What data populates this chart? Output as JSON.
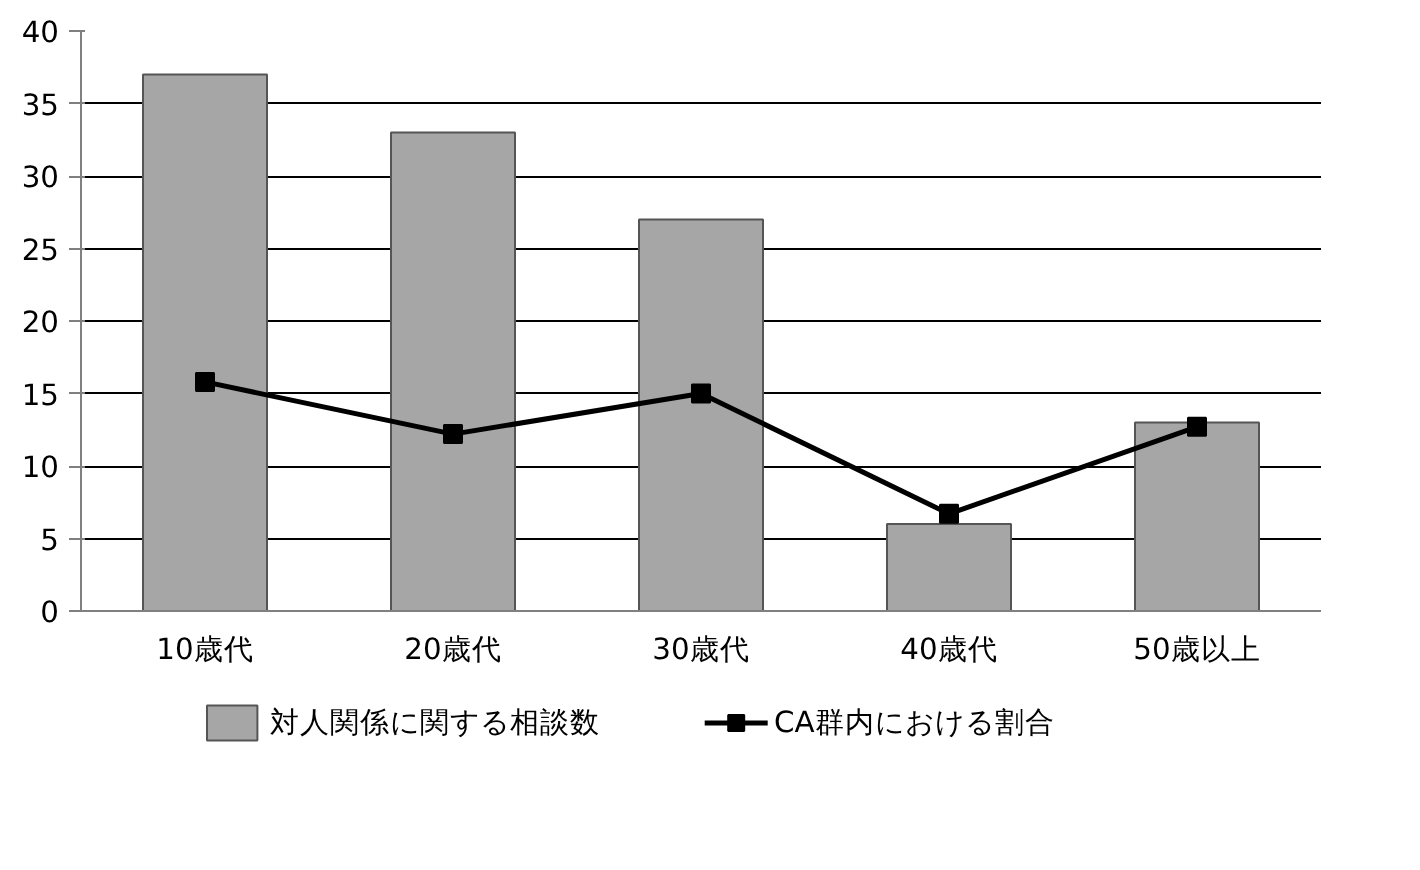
{
  "chart_data": {
    "type": "bar",
    "categories": [
      "10歳代",
      "20歳代",
      "30歳代",
      "40歳代",
      "50歳以上"
    ],
    "series": [
      {
        "name": "対人関係に関する相談数",
        "type": "bar",
        "color": "#a6a6a6",
        "values": [
          37,
          33,
          27,
          6,
          13
        ]
      },
      {
        "name": "CA群内における割合",
        "type": "line",
        "color": "#000000",
        "marker": "square",
        "values": [
          15.8,
          12.2,
          15,
          6.7,
          12.7
        ]
      }
    ],
    "ylim": [
      0,
      40
    ],
    "yticks": [
      0,
      5,
      10,
      15,
      20,
      25,
      30,
      35,
      40
    ],
    "grid": "y",
    "legend": "bottom"
  }
}
